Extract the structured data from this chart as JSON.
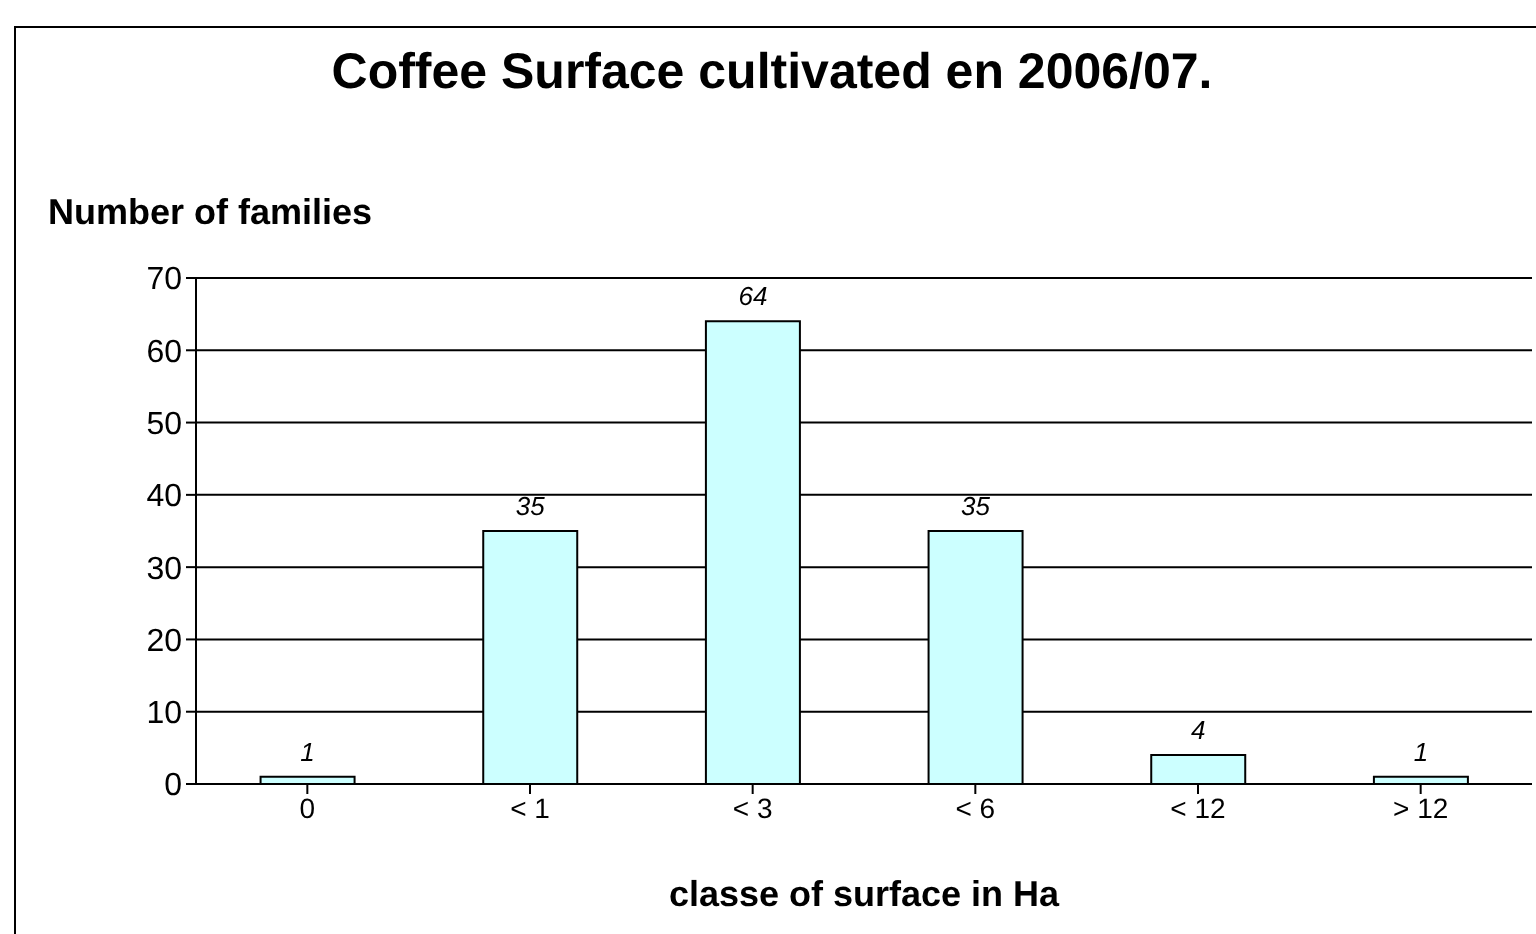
{
  "chart_data": {
    "type": "bar",
    "title": "Coffee Surface cultivated en 2006/07.",
    "xlabel": "classe of surface in Ha",
    "ylabel": "Number of families",
    "categories": [
      "0",
      "< 1",
      "< 3",
      "< 6",
      "< 12",
      "> 12"
    ],
    "values": [
      1,
      35,
      64,
      35,
      4,
      1
    ],
    "color": "#ccffff",
    "ylim": [
      0,
      70
    ],
    "yticks": [
      0,
      10,
      20,
      30,
      40,
      50,
      60,
      70
    ],
    "grid": "y",
    "data_labels": true
  }
}
